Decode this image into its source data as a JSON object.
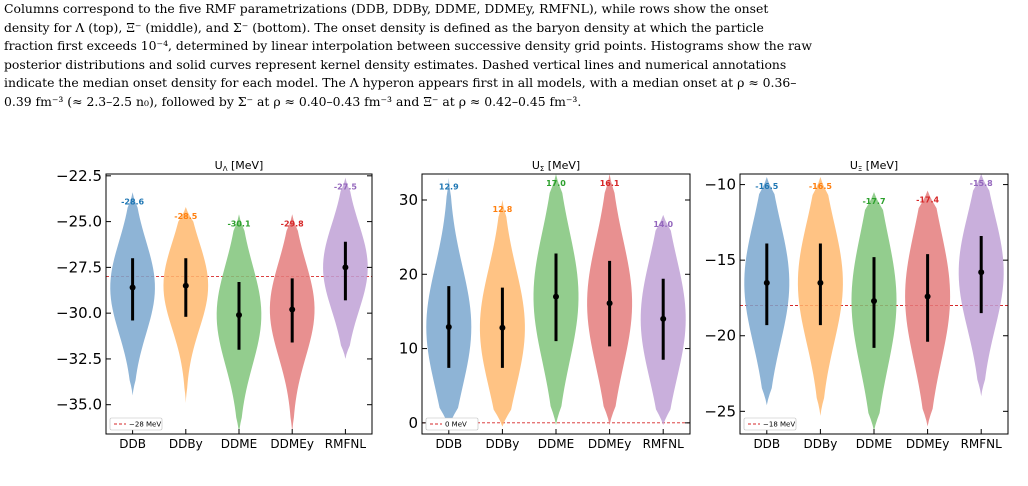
{
  "caption": {
    "line1": "Columns correspond to the five RMF parametrizations (DDB, DDBy, DDME, DDMEy, RMFNL), while rows show the onset",
    "line2": "density for Λ (top), Ξ⁻ (middle), and Σ⁻ (bottom). The onset density is defined as the baryon density at which the particle",
    "line3": "fraction first exceeds 10⁻⁴, determined by linear interpolation between successive density grid points. Histograms show the raw",
    "line4": "posterior distributions and solid curves represent kernel density estimates. Dashed vertical lines and numerical annotations",
    "line5": "indicate the median onset density for each model. The Λ hyperon appears first in all models, with a median onset at ρ ≈ 0.36–",
    "line6": "0.39 fm⁻³ (≈ 2.3–2.5 n₀), followed by Σ⁻ at ρ ≈ 0.40–0.43 fm⁻³ and Ξ⁻ at ρ ≈ 0.42–0.45 fm⁻³."
  },
  "colors": {
    "DDB": "#7aa7cf",
    "DDBy": "#ffb86f",
    "DDME": "#80c47a",
    "DDMEy": "#e47c7c",
    "RMFNL": "#bfa1d6",
    "label_DDB": "#1f77b4",
    "label_DDBy": "#ff7f0e",
    "label_DDME": "#2ca02c",
    "label_DDMEy": "#d62728",
    "label_RMFNL": "#9467bd",
    "ref_line": "#d62728"
  },
  "chart_data": [
    {
      "type": "violin",
      "title": "U_Λ [MeV]",
      "title_main": "U",
      "title_sub": "Λ",
      "title_unit": " [MeV]",
      "categories": [
        "DDB",
        "DDBy",
        "DDME",
        "DDMEy",
        "RMFNL"
      ],
      "ylim": [
        -36.6,
        -22.4
      ],
      "yticks": [
        -35.0,
        -32.5,
        -30.0,
        -27.5,
        -25.0,
        -22.5
      ],
      "ytick_labels": [
        "−35.0",
        "−32.5",
        "−30.0",
        "−27.5",
        "−25.0",
        "−22.5"
      ],
      "reference_line": {
        "value": -28,
        "label": "−28 MeV"
      },
      "series": [
        {
          "category": "DDB",
          "median": -28.6,
          "median_label": "-28.6",
          "q_low": -30.4,
          "q_high": -27.0,
          "min": -34.5,
          "max": -23.4
        },
        {
          "category": "DDBy",
          "median": -28.5,
          "median_label": "-28.5",
          "q_low": -30.2,
          "q_high": -27.0,
          "min": -34.9,
          "max": -24.2
        },
        {
          "category": "DDME",
          "median": -30.1,
          "median_label": "-30.1",
          "q_low": -32.0,
          "q_high": -28.3,
          "min": -36.6,
          "max": -24.6
        },
        {
          "category": "DDMEy",
          "median": -29.8,
          "median_label": "-29.8",
          "q_low": -31.6,
          "q_high": -28.1,
          "min": -36.6,
          "max": -24.6
        },
        {
          "category": "RMFNL",
          "median": -27.5,
          "median_label": "-27.5",
          "q_low": -29.3,
          "q_high": -26.1,
          "min": -32.5,
          "max": -22.6
        }
      ]
    },
    {
      "type": "violin",
      "title": "U_Σ [MeV]",
      "title_main": "U",
      "title_sub": "Σ",
      "title_unit": " [MeV]",
      "categories": [
        "DDB",
        "DDBy",
        "DDME",
        "DDMEy",
        "RMFNL"
      ],
      "ylim": [
        -1.5,
        33.5
      ],
      "yticks": [
        0,
        10,
        20,
        30
      ],
      "ytick_labels": [
        "0",
        "10",
        "20",
        "30"
      ],
      "reference_line": {
        "value": 0,
        "label": "0 MeV"
      },
      "series": [
        {
          "category": "DDB",
          "median": 12.9,
          "median_label": "12.9",
          "q_low": 7.4,
          "q_high": 18.4,
          "min": -0.5,
          "max": 33.0
        },
        {
          "category": "DDBy",
          "median": 12.8,
          "median_label": "12.8",
          "q_low": 7.4,
          "q_high": 18.2,
          "min": -0.5,
          "max": 30.0
        },
        {
          "category": "DDME",
          "median": 17.0,
          "median_label": "17.0",
          "q_low": 11.0,
          "q_high": 22.8,
          "min": -0.3,
          "max": 33.5
        },
        {
          "category": "DDMEy",
          "median": 16.1,
          "median_label": "16.1",
          "q_low": 10.3,
          "q_high": 21.8,
          "min": -0.3,
          "max": 33.5
        },
        {
          "category": "RMFNL",
          "median": 14.0,
          "median_label": "14.0",
          "q_low": 8.5,
          "q_high": 19.4,
          "min": -0.3,
          "max": 28.0
        }
      ]
    },
    {
      "type": "violin",
      "title": "U_Ξ [MeV]",
      "title_main": "U",
      "title_sub": "Ξ",
      "title_unit": " [MeV]",
      "categories": [
        "DDB",
        "DDBy",
        "DDME",
        "DDMEy",
        "RMFNL"
      ],
      "ylim": [
        -26.5,
        -9.3
      ],
      "yticks": [
        -25,
        -20,
        -15,
        -10
      ],
      "ytick_labels": [
        "−25",
        "−20",
        "−15",
        "−10"
      ],
      "reference_line": {
        "value": -18,
        "label": "−18 MeV"
      },
      "series": [
        {
          "category": "DDB",
          "median": -16.5,
          "median_label": "-16.5",
          "q_low": -19.3,
          "q_high": -13.9,
          "min": -24.6,
          "max": -9.5
        },
        {
          "category": "DDBy",
          "median": -16.5,
          "median_label": "-16.5",
          "q_low": -19.3,
          "q_high": -13.9,
          "min": -25.3,
          "max": -9.5
        },
        {
          "category": "DDME",
          "median": -17.7,
          "median_label": "-17.7",
          "q_low": -20.8,
          "q_high": -14.8,
          "min": -26.3,
          "max": -10.5
        },
        {
          "category": "DDMEy",
          "median": -17.4,
          "median_label": "-17.4",
          "q_low": -20.4,
          "q_high": -14.6,
          "min": -26.0,
          "max": -10.4
        },
        {
          "category": "RMFNL",
          "median": -15.8,
          "median_label": "-15.8",
          "q_low": -18.5,
          "q_high": -13.4,
          "min": -24.0,
          "max": -9.3
        }
      ]
    }
  ]
}
